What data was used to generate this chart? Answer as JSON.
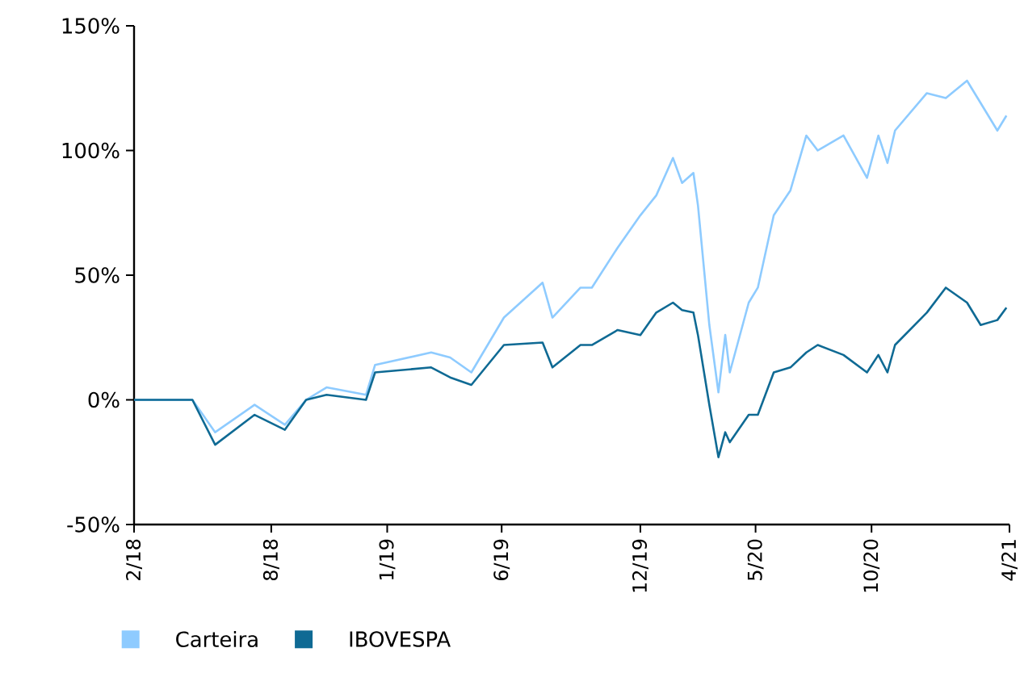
{
  "chart_data": {
    "type": "line",
    "xlim": [
      "2018-02",
      "2021-04"
    ],
    "ylim": [
      -50,
      150
    ],
    "xticks": [
      {
        "value": "2018-02",
        "label": "2/18"
      },
      {
        "value": "2018-08",
        "label": "8/18"
      },
      {
        "value": "2019-01",
        "label": "1/19"
      },
      {
        "value": "2019-06",
        "label": "6/19"
      },
      {
        "value": "2019-12",
        "label": "12/19"
      },
      {
        "value": "2020-05",
        "label": "5/20"
      },
      {
        "value": "2020-10",
        "label": "10/20"
      },
      {
        "value": "2021-04",
        "label": "4/21"
      }
    ],
    "yticks": [
      {
        "value": -50,
        "label": "-50%"
      },
      {
        "value": 0,
        "label": "0%"
      },
      {
        "value": 50,
        "label": "50%"
      },
      {
        "value": 100,
        "label": "100%"
      },
      {
        "value": 150,
        "label": "150%"
      }
    ],
    "x": [
      "2018-02-01",
      "2018-04-19",
      "2018-05-19",
      "2018-07-10",
      "2018-08-19",
      "2018-09-16",
      "2018-10-13",
      "2018-12-04",
      "2018-12-16",
      "2019-02-28",
      "2019-03-25",
      "2019-04-22",
      "2019-06-04",
      "2019-07-25",
      "2019-08-07",
      "2019-09-13",
      "2019-09-28",
      "2019-11-01",
      "2019-12-01",
      "2019-12-22",
      "2020-01-13",
      "2020-01-25",
      "2020-02-09",
      "2020-02-15",
      "2020-03-01",
      "2020-03-13",
      "2020-03-22",
      "2020-03-28",
      "2020-04-22",
      "2020-05-04",
      "2020-05-25",
      "2020-06-16",
      "2020-07-07",
      "2020-07-22",
      "2020-08-25",
      "2020-09-25",
      "2020-10-10",
      "2020-10-22",
      "2020-11-01",
      "2020-12-13",
      "2021-01-07",
      "2021-02-04",
      "2021-02-22",
      "2021-03-16",
      "2021-03-28"
    ],
    "series": [
      {
        "name": "Carteira",
        "color": "#8ecbff",
        "values": [
          0,
          0,
          -13,
          -2,
          -10,
          0,
          5,
          2,
          14,
          19,
          17,
          11,
          33,
          47,
          33,
          45,
          45,
          61,
          74,
          82,
          97,
          87,
          91,
          78,
          30,
          3,
          26,
          11,
          39,
          45,
          74,
          84,
          106,
          100,
          106,
          89,
          106,
          95,
          108,
          123,
          121,
          128,
          119,
          108,
          114
        ]
      },
      {
        "name": "IBOVESPA",
        "color": "#0f6a94",
        "values": [
          0,
          0,
          -18,
          -6,
          -12,
          0,
          2,
          0,
          11,
          13,
          9,
          6,
          22,
          23,
          13,
          22,
          22,
          28,
          26,
          35,
          39,
          36,
          35,
          26,
          -2,
          -23,
          -13,
          -17,
          -6,
          -6,
          11,
          13,
          19,
          22,
          18,
          11,
          18,
          11,
          22,
          35,
          45,
          39,
          30,
          32,
          37
        ]
      }
    ],
    "legend": "bottom left",
    "grid": false,
    "marker": "none",
    "line_style": "solid"
  }
}
